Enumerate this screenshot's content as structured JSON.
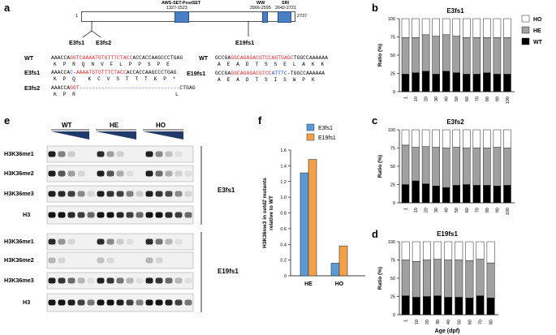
{
  "panel_labels": {
    "a": "a",
    "b": "b",
    "c": "c",
    "d": "d",
    "e": "e",
    "f": "f"
  },
  "panel_a": {
    "protein_start": "1",
    "protein_end": "2737",
    "domains": [
      {
        "name": "AWS-SET-PostSET",
        "range": "1327-1523"
      },
      {
        "name": "WW",
        "range": "2566-2595"
      },
      {
        "name": "SRI",
        "range": "2642-2721"
      }
    ],
    "mutation_sites": [
      "E3fs1",
      "E3fs2",
      "E19fs1"
    ],
    "left_alignment": {
      "wt_label": "WT",
      "wt_pre": "AAACCA",
      "wt_red": "GGTCAAAATGTGTTTCTACC",
      "wt_post": "ACCACCAAGCCCTGAG",
      "wt_aa": "K  P  R  Q  N  V  F  L  P  P  S  P  E",
      "e3fs1_label": "E3fs1",
      "e3fs1_pre": "AAACCA",
      "e3fs1_blue": "C",
      "e3fs1_dash": "-",
      "e3fs1_red": "AAAATGTGTTTCTACC",
      "e3fs1_post": "ACCACCAAGCCCTGAG",
      "e3fs1_aa": "K  P  Q    K  C  V  S  T  T  T  K  P  *",
      "e3fs2_label": "E3fs2",
      "e3fs2_pre": "AAACCA",
      "e3fs2_red": "GGT",
      "e3fs2_dash": "--------------------------------",
      "e3fs2_post": "CTGAG",
      "e3fs2_aa_a": "K  P  R",
      "e3fs2_aa_b": "L"
    },
    "right_alignment": {
      "wt_label": "WT",
      "wt_pre": "GCCGA",
      "wt_red": "GGCAGAGACGTCCAGTGAGC",
      "wt_post": "TGGCCAAAAAA",
      "wt_aa": "A  E  A  D  T  S  S  E  L  A  K  K",
      "e19_label": "E19fs1",
      "e19_pre": "GCCGA",
      "e19_red": "GGCAGAGACGTCC",
      "e19_blue": "ATTTC",
      "e19_post": "-TGGCCAAAAAA",
      "e19_aa": "A  E  A  D  T  S  I  S  W  P  K"
    }
  },
  "panel_e": {
    "groups": [
      "WT",
      "HE",
      "HO"
    ],
    "rows_top": [
      "H3K36me1",
      "H3K36me2",
      "H3K36me3",
      "H3"
    ],
    "rows_bottom": [
      "H3K36me1",
      "H3K36me2",
      "H3K36me3",
      "H3"
    ],
    "top_label": "E3fs1",
    "bottom_label": "E19fs1"
  },
  "panel_f": {
    "legend": [
      "E3fs1",
      "E19fs1"
    ],
    "ylabel_pre": "H3K36me3 in ",
    "ylabel_gene": "setd2",
    "ylabel_post": " mutants",
    "ylabel_line2": "relative to WT",
    "colors": {
      "E3fs1": "#5b9bd5",
      "E19fs1": "#f4a04a"
    },
    "chart_data": {
      "type": "bar",
      "categories": [
        "HE",
        "HO"
      ],
      "series": [
        {
          "name": "E3fs1",
          "values": [
            1.31,
            0.16
          ]
        },
        {
          "name": "E19fs1",
          "values": [
            1.48,
            0.38
          ]
        }
      ],
      "ylim": [
        0,
        1.6
      ],
      "yticks": [
        "0",
        "0.2",
        "0.4",
        "0.6",
        "0.8",
        "1.0",
        "1.2",
        "1.4",
        "1.6"
      ]
    }
  },
  "stacked_charts": {
    "ylabel": "Ratio (%)",
    "yticks": [
      "0",
      "25",
      "50",
      "75",
      "100"
    ],
    "legend": [
      "HO",
      "HE",
      "WT"
    ],
    "colors": {
      "WT": "#000000",
      "HE": "#a0a0a0",
      "HO": "#ffffff"
    },
    "xlabel_d": "Age (dpf)",
    "chart_data": [
      {
        "type": "bar",
        "stacked": true,
        "title": "E3fs1",
        "categories": [
          "1",
          "10",
          "20",
          "30",
          "40",
          "50",
          "60",
          "70",
          "80",
          "90",
          "100"
        ],
        "series": [
          {
            "name": "WT",
            "values": [
              24,
              26,
              28,
              24,
              28,
              26,
              24,
              24,
              26,
              24,
              24
            ]
          },
          {
            "name": "HE",
            "values": [
              50,
              48,
              50,
              52,
              50,
              50,
              50,
              50,
              48,
              50,
              50
            ]
          },
          {
            "name": "HO",
            "values": [
              26,
              26,
              22,
              24,
              22,
              24,
              26,
              26,
              26,
              26,
              26
            ]
          }
        ],
        "ylim": [
          0,
          100
        ]
      },
      {
        "type": "bar",
        "stacked": true,
        "title": "E3fs2",
        "categories": [
          "1",
          "10",
          "20",
          "30",
          "40",
          "50",
          "60",
          "70",
          "80",
          "90",
          "100"
        ],
        "series": [
          {
            "name": "WT",
            "values": [
              25,
              30,
              26,
              23,
              21,
              24,
              25,
              24,
              24,
              23,
              24
            ]
          },
          {
            "name": "HE",
            "values": [
              54,
              46,
              51,
              53,
              54,
              52,
              50,
              51,
              51,
              53,
              51
            ]
          },
          {
            "name": "HO",
            "values": [
              21,
              24,
              23,
              24,
              25,
              24,
              25,
              25,
              25,
              24,
              25
            ]
          }
        ],
        "ylim": [
          0,
          100
        ]
      },
      {
        "type": "bar",
        "stacked": true,
        "title": "E19fs1",
        "categories": [
          "1",
          "10",
          "20",
          "30",
          "40",
          "50",
          "60",
          "70",
          "80"
        ],
        "series": [
          {
            "name": "WT",
            "values": [
              26,
              24,
              25,
              26,
              24,
              24,
              23,
              26,
              23
            ]
          },
          {
            "name": "HE",
            "values": [
              49,
              49,
              50,
              50,
              51,
              51,
              51,
              50,
              48
            ]
          },
          {
            "name": "HO",
            "values": [
              25,
              27,
              25,
              24,
              25,
              25,
              26,
              24,
              29
            ]
          }
        ],
        "ylim": [
          0,
          100
        ]
      }
    ]
  }
}
